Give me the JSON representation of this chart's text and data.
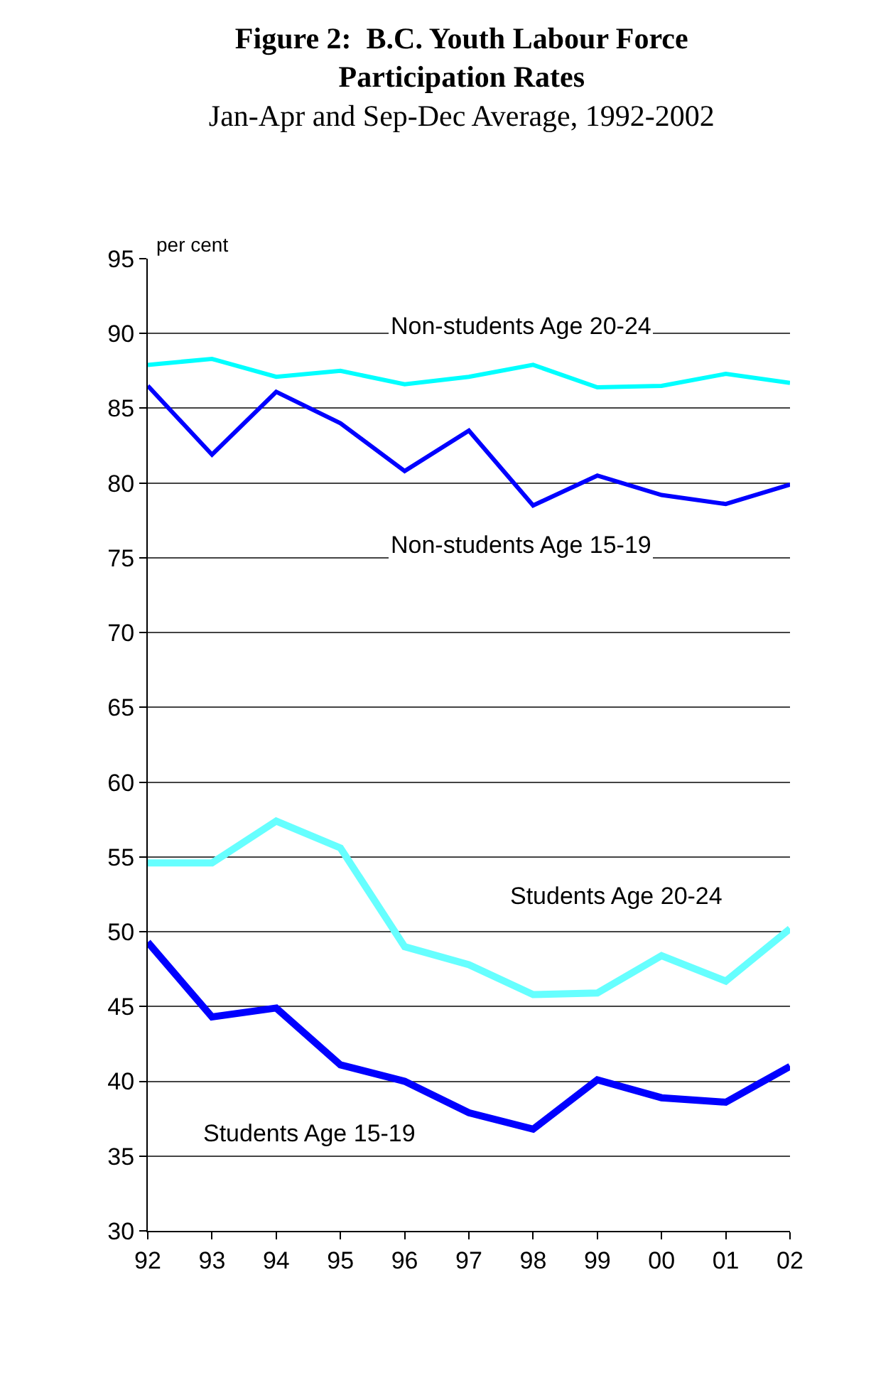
{
  "chart_data": {
    "type": "line",
    "title": "Figure 2:  B.C. Youth Labour Force Participation Rates",
    "subtitle": "Jan-Apr and Sep-Dec Average, 1992-2002",
    "ylabel": "per cent",
    "categories": [
      "92",
      "93",
      "94",
      "95",
      "96",
      "97",
      "98",
      "99",
      "00",
      "01",
      "02"
    ],
    "series": [
      {
        "name": "Non-students Age 20-24",
        "color": "#00ffff",
        "values": [
          87.9,
          88.3,
          87.1,
          87.5,
          86.6,
          87.1,
          87.9,
          86.4,
          86.5,
          87.3,
          86.7
        ]
      },
      {
        "name": "Non-students Age 15-19",
        "color": "#0000ff",
        "values": [
          86.5,
          81.9,
          86.1,
          84.0,
          80.8,
          83.5,
          78.5,
          80.5,
          79.2,
          78.6,
          79.9
        ]
      },
      {
        "name": "Students Age 20-24",
        "color": "#66ffff",
        "values": [
          54.6,
          54.6,
          57.4,
          55.6,
          49.0,
          47.8,
          45.8,
          45.9,
          48.4,
          46.7,
          50.2
        ]
      },
      {
        "name": "Students Age 15-19",
        "color": "#0000ff",
        "values": [
          49.3,
          44.3,
          44.9,
          41.1,
          40.0,
          37.9,
          36.8,
          40.1,
          38.9,
          38.6,
          41.0
        ]
      }
    ],
    "ylim": [
      30,
      95
    ],
    "yticks": [
      30,
      35,
      40,
      45,
      50,
      55,
      60,
      65,
      70,
      75,
      80,
      85,
      90,
      95
    ],
    "grid": "y",
    "marker": "none",
    "line_style": "solid"
  }
}
